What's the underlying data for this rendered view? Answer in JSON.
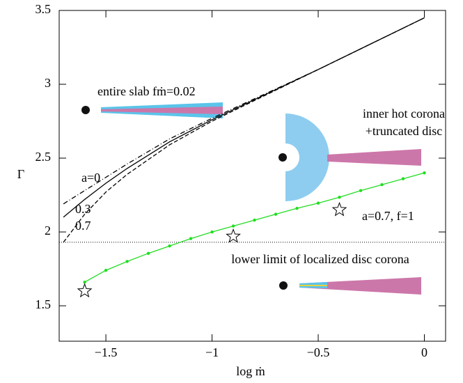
{
  "chart_data": {
    "type": "line",
    "xlabel": "log ṁ",
    "ylabel": "Γ",
    "xlim": [
      -1.72,
      0.1
    ],
    "ylim": [
      1.26,
      3.5
    ],
    "xticks": [
      {
        "value": -1.5,
        "label": "−1.5"
      },
      {
        "value": -1,
        "label": "−1"
      },
      {
        "value": -0.5,
        "label": "−0.5"
      },
      0
    ],
    "yticks": [
      1.5,
      2,
      2.5,
      3,
      3.5
    ],
    "series": [
      {
        "color": "#000000",
        "dash": "dashdot",
        "x": [
          -1.7,
          -1.6,
          -1.5,
          -1.4,
          -1.2,
          -1,
          -0.5,
          0
        ],
        "values": [
          2.19,
          2.28,
          2.37,
          2.46,
          2.63,
          2.77,
          3.1,
          3.45
        ]
      },
      {
        "color": "#000000",
        "dash": "solid",
        "x": [
          -1.7,
          -1.6,
          -1.5,
          -1.4,
          -1.2,
          -1,
          -0.5,
          0
        ],
        "values": [
          2.1,
          2.22,
          2.33,
          2.43,
          2.61,
          2.76,
          3.1,
          3.45
        ]
      },
      {
        "color": "#000000",
        "dash": "dashed",
        "x": [
          -1.7,
          -1.6,
          -1.5,
          -1.4,
          -1.2,
          -1,
          -0.5,
          0
        ],
        "values": [
          1.93,
          2.12,
          2.27,
          2.39,
          2.59,
          2.75,
          3.1,
          3.45
        ]
      },
      {
        "color": "#22dd22",
        "dash": "solid",
        "markers": true,
        "x": [
          -1.6,
          -1.5,
          -1.4,
          -1.3,
          -1.2,
          -1.1,
          -1,
          -0.9,
          -0.8,
          -0.7,
          -0.6,
          -0.5,
          -0.4,
          -0.3,
          -0.2,
          -0.1,
          0
        ],
        "values": [
          1.66,
          1.74,
          1.8,
          1.855,
          1.905,
          1.955,
          2.0,
          2.04,
          2.08,
          2.12,
          2.16,
          2.195,
          2.235,
          2.28,
          2.32,
          2.36,
          2.4
        ]
      }
    ],
    "stars": {
      "x": [
        -1.6,
        -0.9,
        -0.4
      ],
      "values": [
        1.6,
        1.97,
        2.15
      ]
    },
    "hline": 1.93,
    "annotations": [
      "a=0",
      "0.3",
      "0.7",
      "entire slab  fṁ=0.02",
      "inner hot corona",
      "+truncated disc",
      "a=0.7, f=1",
      "lower limit of localized disc corona"
    ]
  }
}
